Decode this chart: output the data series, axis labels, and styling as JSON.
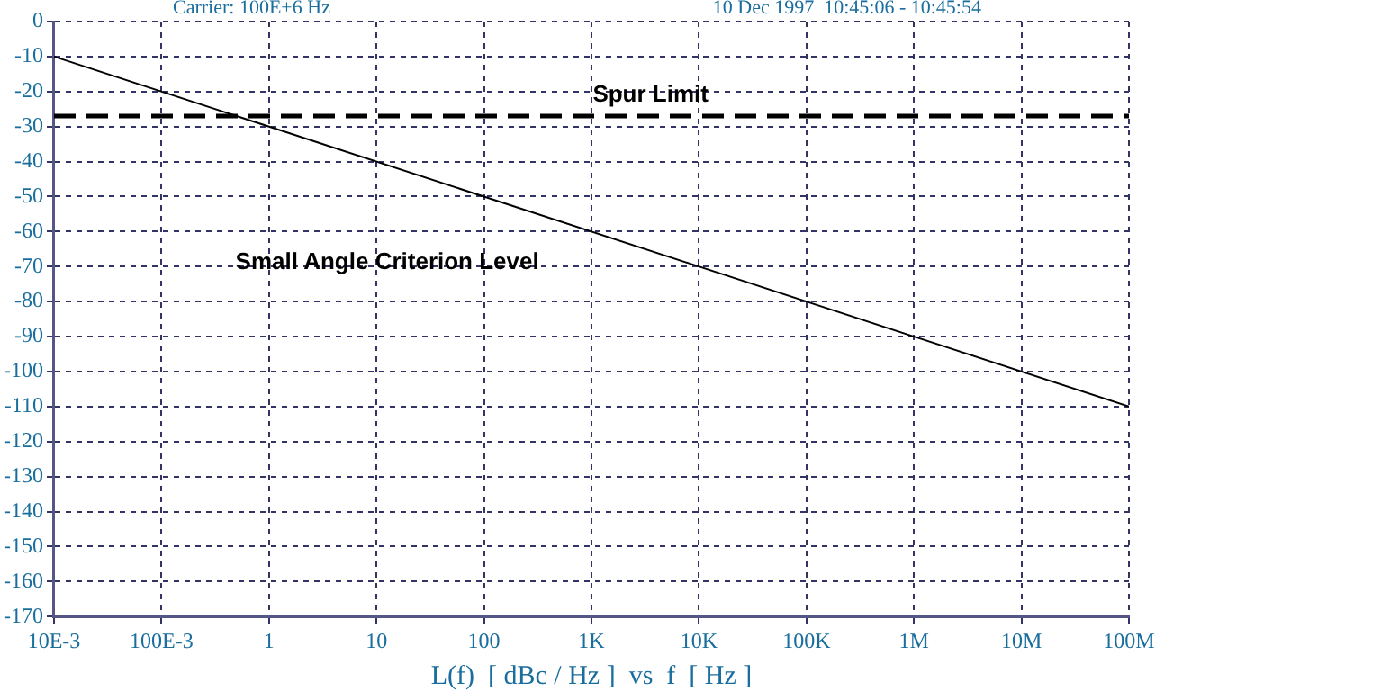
{
  "chart_data": {
    "type": "line",
    "xlabel": "L(f)  [ dBc / Hz ]  vs  f  [ Hz ]",
    "annotations": [
      "Carrier: 100E+6 Hz",
      "10 Dec 1997  10:45:06 - 10:45:54"
    ],
    "log": "x",
    "xlim": [
      0.01,
      100000000
    ],
    "xticks": [
      {
        "value": 0.01,
        "label": "10E-3"
      },
      {
        "value": 0.1,
        "label": "100E-3"
      },
      1,
      10,
      100,
      {
        "value": 1000,
        "label": "1K"
      },
      {
        "value": 10000,
        "label": "10K"
      },
      {
        "value": 100000,
        "label": "100K"
      },
      {
        "value": 1000000,
        "label": "1M"
      },
      {
        "value": 10000000,
        "label": "10M"
      },
      {
        "value": 100000000,
        "label": "100M"
      }
    ],
    "ylim": [
      -170,
      0
    ],
    "yticks": [
      -170,
      -160,
      -150,
      -140,
      -130,
      -120,
      -110,
      -100,
      -90,
      -80,
      -70,
      -60,
      -50,
      -40,
      -30,
      -20,
      -10,
      0
    ],
    "grid": true,
    "legend": false,
    "marker": "none",
    "line_style": "solid",
    "series": [
      {
        "name": "Small Angle Criterion Level",
        "color": "#000000",
        "x": [
          0.01,
          100000000
        ],
        "values": [
          -10,
          -110
        ]
      }
    ],
    "ref_lines": [
      {
        "axis": "y",
        "value": -27,
        "label": "Spur Limit",
        "color": "#000000",
        "line_style": "dashed"
      }
    ]
  }
}
